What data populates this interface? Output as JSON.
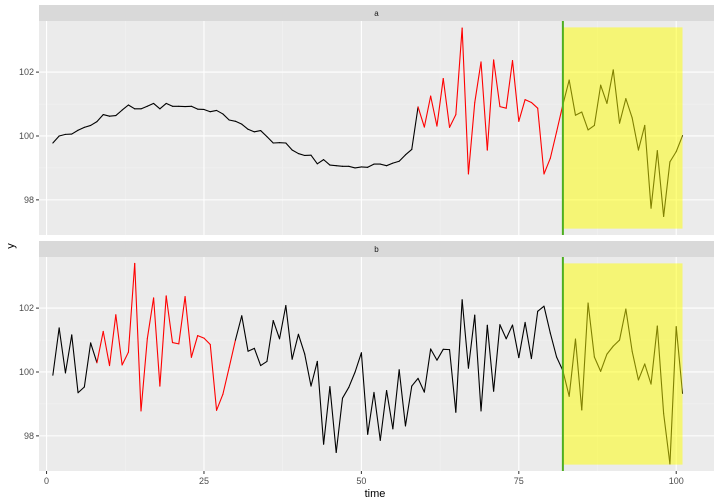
{
  "chart_data": {
    "type": "line",
    "xlabel": "time",
    "ylabel": "y",
    "xlim": [
      -1.2,
      106
    ],
    "ylim": [
      96.9,
      103.6
    ],
    "x_ticks": [
      0,
      25,
      50,
      75,
      100
    ],
    "y_ticks": [
      98,
      100,
      102
    ],
    "grid": true,
    "legend": "none",
    "colors": {
      "panel_bg": "#ebebeb",
      "strip_bg": "#d9d9d9",
      "grid_major": "#ffffff",
      "grid_minor": "#f2f2f2",
      "series_normal": "#000000",
      "series_highlight": "#ff0000",
      "vline": "#4daf1f",
      "forecast_band": "#ffff00"
    },
    "vline_x": 82,
    "forecast_band": {
      "x": [
        82,
        101
      ],
      "y": [
        97.1,
        103.4
      ]
    },
    "panels": [
      {
        "strip": "a",
        "y": [
          99.78,
          100.0,
          100.05,
          100.06,
          100.18,
          100.27,
          100.33,
          100.45,
          100.67,
          100.62,
          100.64,
          100.81,
          100.97,
          100.85,
          100.85,
          100.93,
          101.02,
          100.85,
          101.02,
          100.93,
          100.93,
          100.92,
          100.93,
          100.84,
          100.83,
          100.76,
          100.8,
          100.69,
          100.5,
          100.46,
          100.37,
          100.21,
          100.13,
          100.17,
          99.98,
          99.78,
          99.79,
          99.78,
          99.56,
          99.45,
          99.39,
          99.4,
          99.13,
          99.26,
          99.09,
          99.07,
          99.05,
          99.05,
          99.0,
          99.03,
          99.02,
          99.12,
          99.12,
          99.07,
          99.15,
          99.21,
          99.41,
          99.58,
          100.91,
          100.28,
          101.25,
          100.31,
          101.8,
          100.27,
          100.67,
          103.38,
          98.81,
          101.04,
          102.32,
          99.56,
          102.38,
          100.92,
          100.87,
          102.36,
          100.46,
          101.14,
          101.05,
          100.87,
          98.81,
          99.3,
          100.13,
          100.98,
          101.75,
          100.65,
          100.75,
          100.19,
          100.33,
          101.59,
          101.02,
          102.07,
          100.4,
          101.17,
          100.57,
          99.56,
          100.33,
          97.74,
          99.54,
          97.48,
          99.19,
          99.51,
          100.01
        ],
        "highlight_ranges": [
          [
            58,
            81
          ]
        ]
      },
      {
        "strip": "b",
        "y": [
          99.9,
          101.38,
          99.97,
          101.16,
          99.35,
          99.53,
          100.91,
          100.29,
          101.27,
          100.2,
          101.79,
          100.22,
          100.62,
          103.4,
          98.78,
          101.04,
          102.32,
          99.56,
          102.38,
          100.92,
          100.88,
          102.36,
          100.46,
          101.14,
          101.06,
          100.86,
          98.8,
          99.3,
          100.14,
          101.0,
          101.76,
          100.65,
          100.74,
          100.2,
          100.33,
          101.61,
          101.04,
          102.08,
          100.4,
          101.18,
          100.56,
          99.56,
          100.33,
          97.74,
          99.54,
          97.48,
          99.18,
          99.52,
          100.0,
          100.6,
          98.05,
          99.36,
          97.86,
          99.42,
          98.22,
          100.07,
          98.31,
          99.56,
          99.8,
          99.37,
          100.72,
          100.37,
          100.71,
          100.7,
          98.74,
          102.26,
          100.12,
          101.78,
          98.78,
          101.46,
          99.4,
          101.48,
          101.04,
          101.47,
          100.45,
          101.55,
          100.42,
          101.9,
          102.06,
          101.22,
          100.47,
          100.04,
          99.24,
          101.03,
          98.81,
          102.16,
          100.47,
          100.02,
          100.56,
          100.81,
          101.0,
          101.97,
          100.65,
          99.75,
          100.25,
          99.62,
          101.44,
          98.7,
          97.12,
          101.42,
          99.33
        ],
        "highlight_ranges": [
          [
            7,
            29
          ]
        ]
      }
    ]
  }
}
